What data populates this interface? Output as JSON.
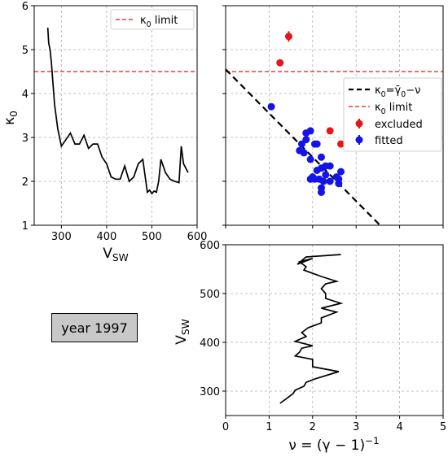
{
  "annotation": "year 1997",
  "chart_data": [
    {
      "type": "line",
      "xlabel_main": "V",
      "xlabel_sub": "SW",
      "ylabel_main": "κ",
      "ylabel_sub": "0",
      "xlim": [
        240,
        600
      ],
      "ylim": [
        1,
        6
      ],
      "xticks": [
        300,
        400,
        500,
        600
      ],
      "yticks": [
        1,
        2,
        3,
        4,
        5,
        6
      ],
      "grid": true,
      "legend_position": "top-right",
      "reference_line": {
        "name_main": "κ",
        "name_sub": "0",
        "name_tail": " limit",
        "y": 4.5,
        "color": "#e8141c",
        "style": "dashed"
      },
      "series": [
        {
          "color": "#000000",
          "x": [
            270,
            272,
            275,
            278,
            285,
            292,
            300,
            310,
            320,
            330,
            340,
            350,
            360,
            370,
            380,
            390,
            400,
            410,
            420,
            430,
            440,
            450,
            460,
            470,
            480,
            490,
            495,
            500,
            505,
            510,
            515,
            520,
            525,
            530,
            540,
            550,
            560,
            565,
            570,
            575,
            580
          ],
          "y": [
            5.5,
            5.15,
            5.0,
            4.7,
            3.75,
            3.2,
            2.8,
            2.95,
            3.1,
            2.85,
            2.85,
            3.05,
            2.75,
            2.85,
            2.85,
            2.55,
            2.4,
            2.1,
            2.05,
            2.05,
            2.35,
            2.0,
            2.1,
            2.4,
            2.5,
            1.75,
            1.8,
            1.72,
            1.78,
            1.75,
            2.0,
            2.5,
            2.35,
            2.2,
            2.05,
            2.0,
            1.97,
            2.8,
            2.4,
            2.3,
            2.2
          ]
        }
      ]
    },
    {
      "type": "scatter",
      "xlim": [
        0,
        5
      ],
      "ylim": [
        1,
        6
      ],
      "grid": true,
      "legend_position": "right",
      "reference_line": {
        "name_main": "κ",
        "name_sub": "0",
        "name_tail": " limit",
        "y": 4.5,
        "color": "#e8141c",
        "style": "dashed"
      },
      "fit_line": {
        "name": "κ0=γ̄0−ν",
        "x": [
          0,
          3.55
        ],
        "y": [
          4.55,
          1.0
        ],
        "color": "#000000",
        "style": "dashed"
      },
      "series": [
        {
          "name": "excluded",
          "color": "#e8141c",
          "points": [
            [
              1.45,
              5.3
            ],
            [
              1.25,
              4.7
            ],
            [
              2.4,
              3.15
            ],
            [
              2.65,
              2.85
            ]
          ],
          "errorbar_points": [
            [
              1.45,
              5.3,
              0.12
            ]
          ]
        },
        {
          "name": "fitted",
          "color": "#1414e8",
          "points": [
            [
              1.05,
              3.7
            ],
            [
              1.85,
              3.1
            ],
            [
              1.95,
              3.15
            ],
            [
              2.1,
              2.85
            ],
            [
              2.05,
              2.85
            ],
            [
              1.85,
              2.95
            ],
            [
              1.75,
              2.85
            ],
            [
              1.8,
              2.65
            ],
            [
              1.7,
              2.7
            ],
            [
              1.95,
              2.5
            ],
            [
              2.2,
              2.55
            ],
            [
              2.3,
              2.35
            ],
            [
              2.4,
              2.35
            ],
            [
              2.2,
              2.3
            ],
            [
              2.1,
              2.25
            ],
            [
              2.3,
              2.15
            ],
            [
              2.0,
              2.1
            ],
            [
              1.95,
              2.05
            ],
            [
              2.05,
              2.05
            ],
            [
              2.15,
              2.05
            ],
            [
              2.25,
              2.0
            ],
            [
              2.4,
              2.0
            ],
            [
              2.55,
              2.1
            ],
            [
              2.6,
              1.95
            ],
            [
              2.65,
              2.22
            ],
            [
              2.2,
              1.85
            ],
            [
              2.2,
              1.75
            ],
            [
              2.6,
              2.05
            ]
          ]
        }
      ]
    },
    {
      "type": "line",
      "xlabel": "ν = (γ − 1)",
      "xlabel_sup": "−1",
      "ylabel_main": "V",
      "ylabel_sub": "SW",
      "xlim": [
        0,
        5
      ],
      "ylim": [
        250,
        600
      ],
      "xticks": [
        0,
        1,
        2,
        3,
        4,
        5
      ],
      "yticks": [
        300,
        400,
        500,
        600
      ],
      "grid": true,
      "series": [
        {
          "color": "#000000",
          "x": [
            1.25,
            1.45,
            1.55,
            1.6,
            1.8,
            1.85,
            2.05,
            2.6,
            2.0,
            2.0,
            1.6,
            1.7,
            1.75,
            2.0,
            1.6,
            1.85,
            1.75,
            1.9,
            2.2,
            2.2,
            2.55,
            2.2,
            2.65,
            2.3,
            2.3,
            2.2,
            2.3,
            2.55,
            2.2,
            1.8,
            1.85,
            1.7,
            2.0,
            1.65,
            1.85,
            2.65
          ],
          "y": [
            275,
            288,
            295,
            302,
            310,
            318,
            325,
            340,
            350,
            365,
            372,
            380,
            388,
            393,
            402,
            412,
            420,
            430,
            440,
            450,
            462,
            470,
            480,
            490,
            500,
            510,
            520,
            525,
            535,
            548,
            555,
            565,
            572,
            560,
            575,
            580
          ]
        }
      ]
    }
  ]
}
